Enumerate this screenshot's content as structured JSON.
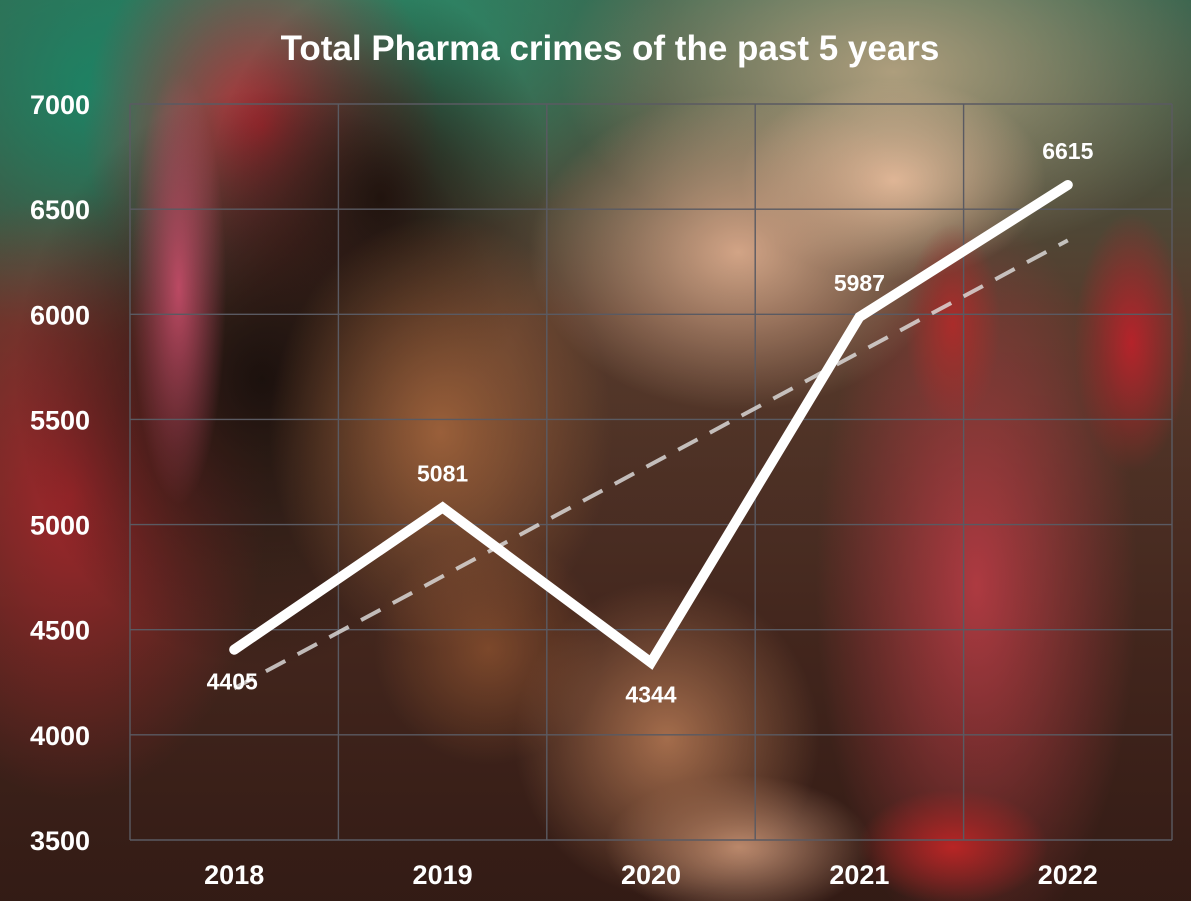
{
  "chart_data": {
    "type": "line",
    "title": "Total Pharma crimes of the past 5 years",
    "xlabel": "",
    "ylabel": "",
    "categories": [
      "2018",
      "2019",
      "2020",
      "2021",
      "2022"
    ],
    "series": [
      {
        "values": [
          4405,
          5081,
          4344,
          5987,
          6615
        ]
      }
    ],
    "data_labels": [
      "4405",
      "5081",
      "4344",
      "5987",
      "6615"
    ],
    "ylim": [
      3500,
      7000
    ],
    "y_ticks": [
      "3500",
      "4000",
      "4500",
      "5000",
      "5500",
      "6000",
      "6500",
      "7000"
    ],
    "grid": true,
    "trendline": "linear, dashed",
    "legend": "none",
    "colors": {
      "series": "#ffffff",
      "trendline": "#e1e1e1",
      "grid": "#5a5a62",
      "text": "#ffffff"
    }
  },
  "background": "photo: child receiving liquid medicine from a spoon"
}
